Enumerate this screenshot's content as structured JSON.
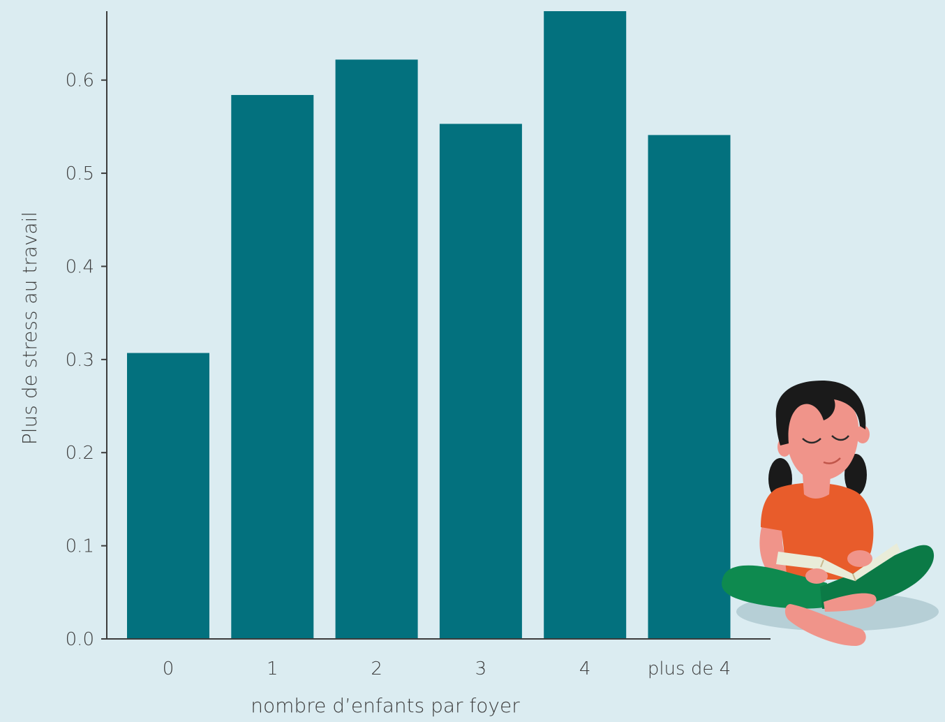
{
  "chart_data": {
    "type": "bar",
    "categories": [
      "0",
      "1",
      "2",
      "3",
      "4",
      "plus de 4"
    ],
    "values": [
      0.307,
      0.584,
      0.622,
      0.553,
      0.674,
      0.541
    ],
    "xlabel": "nombre d’enfants par foyer",
    "ylabel": "Plus de stress au travail",
    "ylim": [
      0,
      0.674
    ],
    "yticks": [
      "0.0",
      "0.1",
      "0.2",
      "0.3",
      "0.4",
      "0.5",
      "0.6"
    ],
    "grid": false,
    "bar_color": "#03717e",
    "axis_color": "#3c3c3c"
  },
  "illustration": {
    "icon": "girl-reading-book-icon",
    "colors": {
      "hair": "#1a1a1a",
      "skin": "#f0948a",
      "shirt": "#e85c2b",
      "pants": "#0e8a4f",
      "book": "#e9ecd9",
      "shadow": "#b6cfd6"
    }
  }
}
